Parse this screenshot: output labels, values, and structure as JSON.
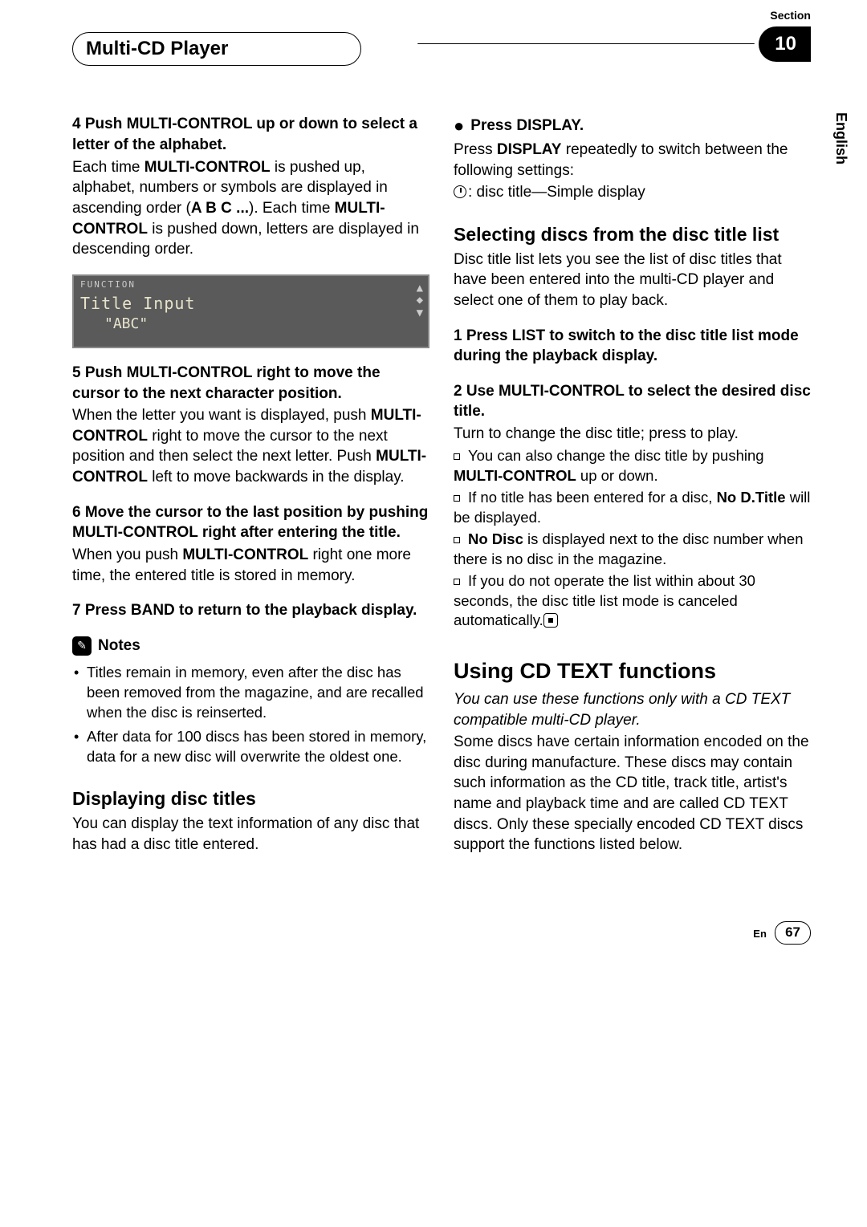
{
  "header": {
    "chapter_title": "Multi-CD Player",
    "section_label": "Section",
    "section_number": "10",
    "side_tab": "English"
  },
  "left": {
    "step4_heading": "4   Push MULTI-CONTROL up or down to select a letter of the alphabet.",
    "step4_p1a": "Each time ",
    "step4_p1b": "MULTI-CONTROL",
    "step4_p1c": " is pushed up, alphabet, numbers or symbols are displayed in ascending order (",
    "step4_p1d": "A B C ...",
    "step4_p1e": "). Each time ",
    "step4_p1f": "MULTI-CONTROL",
    "step4_p1g": " is pushed down, letters are displayed in descending order.",
    "lcd_top": "FUNCTION",
    "lcd_title": "Title Input",
    "lcd_abc": "\"ABC\"",
    "step5_heading": "5   Push MULTI-CONTROL right to move the cursor to the next character position.",
    "step5_p1a": "When the letter you want is displayed, push ",
    "step5_p1b": "MULTI-CONTROL",
    "step5_p1c": " right to move the cursor to the next position and then select the next letter. Push ",
    "step5_p1d": "MULTI-CONTROL",
    "step5_p1e": " left to move backwards in the display.",
    "step6_heading": "6   Move the cursor to the last position by pushing MULTI-CONTROL right after entering the title.",
    "step6_p1a": "When you push ",
    "step6_p1b": "MULTI-CONTROL",
    "step6_p1c": " right one more time, the entered title is stored in memory.",
    "step7_heading": "7   Press BAND to return to the playback display.",
    "notes_label": "Notes",
    "note1": "Titles remain in memory, even after the disc has been removed from the magazine, and are recalled when the disc is reinserted.",
    "note2": "After data for 100 discs has been stored in memory, data for a new disc will overwrite the oldest one.",
    "h2_display": "Displaying disc titles",
    "display_p": "You can display the text information of any disc that has had a disc title entered."
  },
  "right": {
    "press_display_lead": "Press DISPLAY.",
    "press_display_p1a": "Press ",
    "press_display_p1b": "DISPLAY",
    "press_display_p1c": " repeatedly to switch between the following settings:",
    "press_display_line": ": disc title—Simple display",
    "h2_select": "Selecting discs from the disc title list",
    "select_p": "Disc title list lets you see the list of disc titles that have been entered into the multi-CD player and select one of them to play back.",
    "step1_heading": "1   Press LIST to switch to the disc title list mode during the playback display.",
    "step2_heading": "2   Use MULTI-CONTROL to select the desired disc title.",
    "step2_p": "Turn to change the disc title; press to play.",
    "sq1a": "You can also change the disc title by pushing ",
    "sq1b": "MULTI-CONTROL",
    "sq1c": " up or down.",
    "sq2a": "If no title has been entered for a disc, ",
    "sq2b": "No D.Title",
    "sq2c": " will be displayed.",
    "sq3a": "No Disc",
    "sq3b": " is displayed next to the disc number when there is no disc in the magazine.",
    "sq4": "If you do not operate the list within about 30 seconds, the disc title list mode is canceled automatically.",
    "h1_cdtext": "Using CD TEXT functions",
    "cdtext_intro": "You can use these functions only with a CD TEXT compatible multi-CD player.",
    "cdtext_p": "Some discs have certain information encoded on the disc during manufacture. These discs may contain such information as the CD title, track title, artist's name and playback time and are called CD TEXT discs. Only these specially encoded CD TEXT discs support the functions listed below."
  },
  "footer": {
    "lang": "En",
    "page": "67"
  }
}
